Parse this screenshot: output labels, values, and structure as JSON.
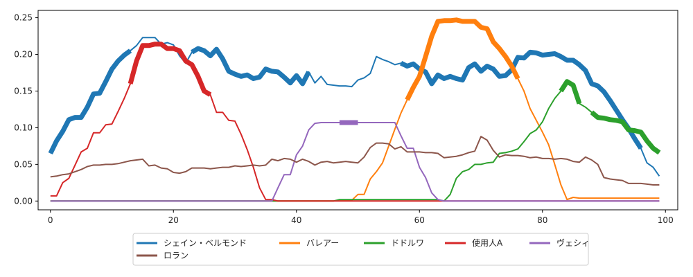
{
  "chart_data": {
    "type": "line",
    "title": "",
    "xlabel": "",
    "ylabel": "",
    "xlim": [
      -2,
      102
    ],
    "ylim": [
      -0.012,
      0.26
    ],
    "xticks": [
      0,
      20,
      40,
      60,
      80,
      100
    ],
    "yticks": [
      0.0,
      0.05,
      0.1,
      0.15,
      0.2,
      0.25
    ],
    "ytick_labels": [
      "0.00",
      "0.05",
      "0.10",
      "0.15",
      "0.20",
      "0.25"
    ],
    "grid": false,
    "legend_placement": "bottom-center",
    "series": [
      {
        "name": "シェイン・ベルモンド",
        "color": "#1f77b4",
        "values": [
          0.065,
          0.082,
          0.095,
          0.111,
          0.114,
          0.114,
          0.128,
          0.146,
          0.147,
          0.163,
          0.18,
          0.191,
          0.199,
          0.205,
          0.212,
          0.223,
          0.223,
          0.223,
          0.214,
          0.216,
          0.213,
          0.198,
          0.188,
          0.203,
          0.208,
          0.205,
          0.198,
          0.207,
          0.194,
          0.177,
          0.173,
          0.17,
          0.172,
          0.167,
          0.169,
          0.18,
          0.177,
          0.176,
          0.169,
          0.161,
          0.171,
          0.16,
          0.176,
          0.161,
          0.17,
          0.159,
          0.158,
          0.157,
          0.157,
          0.156,
          0.165,
          0.168,
          0.174,
          0.197,
          0.193,
          0.19,
          0.186,
          0.188,
          0.184,
          0.187,
          0.18,
          0.176,
          0.16,
          0.172,
          0.167,
          0.17,
          0.167,
          0.165,
          0.182,
          0.187,
          0.177,
          0.184,
          0.18,
          0.17,
          0.171,
          0.179,
          0.196,
          0.195,
          0.203,
          0.202,
          0.199,
          0.2,
          0.201,
          0.197,
          0.192,
          0.192,
          0.186,
          0.178,
          0.16,
          0.157,
          0.149,
          0.137,
          0.124,
          0.111,
          0.099,
          0.085,
          0.072,
          0.052,
          0.046,
          0.034
        ],
        "thick_segments": [
          [
            0,
            13
          ],
          [
            23,
            42
          ],
          [
            57,
            96
          ]
        ]
      },
      {
        "name": "バレアー",
        "color": "#ff7f0e",
        "values": [
          0,
          0,
          0,
          0,
          0,
          0,
          0,
          0,
          0,
          0,
          0,
          0,
          0,
          0,
          0,
          0,
          0,
          0,
          0,
          0,
          0,
          0,
          0,
          0,
          0,
          0,
          0,
          0,
          0,
          0,
          0,
          0,
          0,
          0,
          0,
          0,
          0,
          0,
          0,
          0,
          0,
          0,
          0,
          0,
          0,
          0,
          0,
          0.001,
          0.001,
          0.001,
          0.009,
          0.009,
          0.03,
          0.04,
          0.052,
          0.075,
          0.098,
          0.12,
          0.138,
          0.155,
          0.17,
          0.197,
          0.225,
          0.245,
          0.246,
          0.246,
          0.247,
          0.245,
          0.245,
          0.245,
          0.237,
          0.235,
          0.217,
          0.208,
          0.197,
          0.184,
          0.167,
          0.15,
          0.126,
          0.11,
          0.094,
          0.077,
          0.05,
          0.022,
          0.002,
          0.005,
          0.004,
          0.004,
          0.004,
          0.004,
          0.004,
          0.004,
          0.004,
          0.004,
          0.004,
          0.004,
          0.004,
          0.004,
          0.004,
          0.004
        ],
        "thick_segments": [
          [
            58,
            76
          ]
        ]
      },
      {
        "name": "ドドルワ",
        "color": "#2ca02c",
        "values": [
          0,
          0,
          0,
          0,
          0,
          0,
          0,
          0,
          0,
          0,
          0,
          0,
          0,
          0,
          0,
          0,
          0,
          0,
          0,
          0,
          0,
          0,
          0,
          0,
          0,
          0,
          0,
          0,
          0,
          0,
          0,
          0,
          0,
          0,
          0,
          0,
          0,
          0,
          0,
          0,
          0,
          0,
          0,
          0,
          0,
          0,
          0,
          0.002,
          0.002,
          0.002,
          0.002,
          0.002,
          0.002,
          0.002,
          0.002,
          0.002,
          0.002,
          0.002,
          0.002,
          0.002,
          0.002,
          0.002,
          0.002,
          0.002,
          0,
          0.009,
          0.031,
          0.04,
          0.043,
          0.05,
          0.05,
          0.052,
          0.053,
          0.065,
          0.066,
          0.068,
          0.071,
          0.081,
          0.092,
          0.097,
          0.108,
          0.126,
          0.14,
          0.15,
          0.163,
          0.158,
          0.133,
          0.128,
          0.121,
          0.114,
          0.113,
          0.111,
          0.11,
          0.108,
          0.097,
          0.096,
          0.094,
          0.082,
          0.072,
          0.066
        ],
        "thick_segments": [
          [
            83,
            86
          ],
          [
            88,
            99
          ]
        ]
      },
      {
        "name": "使用人A",
        "color": "#d62728",
        "values": [
          0.007,
          0.007,
          0.025,
          0.031,
          0.049,
          0.067,
          0.072,
          0.093,
          0.093,
          0.104,
          0.105,
          0.122,
          0.14,
          0.16,
          0.191,
          0.212,
          0.212,
          0.214,
          0.214,
          0.208,
          0.208,
          0.205,
          0.191,
          0.186,
          0.17,
          0.15,
          0.145,
          0.121,
          0.121,
          0.11,
          0.109,
          0.091,
          0.07,
          0.046,
          0.018,
          0.002,
          0.002,
          0,
          0,
          0,
          0,
          0,
          0,
          0,
          0,
          0,
          0,
          0,
          0,
          0,
          0,
          0,
          0,
          0,
          0,
          0,
          0,
          0,
          0,
          0,
          0,
          0,
          0,
          0,
          0,
          0,
          0,
          0,
          0,
          0,
          0,
          0,
          0,
          0,
          0,
          0,
          0,
          0,
          0,
          0,
          0,
          0,
          0,
          0,
          0,
          0,
          0,
          0,
          0,
          0,
          0,
          0,
          0,
          0,
          0,
          0,
          0,
          0,
          0,
          0
        ],
        "thick_segments": [
          [
            13,
            26
          ]
        ]
      },
      {
        "name": "ヴェシィ",
        "color": "#9467bd",
        "values": [
          0,
          0,
          0,
          0,
          0,
          0,
          0,
          0,
          0,
          0,
          0,
          0,
          0,
          0,
          0,
          0,
          0,
          0,
          0,
          0,
          0,
          0,
          0,
          0,
          0,
          0,
          0,
          0,
          0,
          0,
          0,
          0,
          0,
          0,
          0,
          0,
          0,
          0.018,
          0.036,
          0.036,
          0.063,
          0.075,
          0.097,
          0.106,
          0.107,
          0.107,
          0.107,
          0.107,
          0.107,
          0.107,
          0.107,
          0.107,
          0.107,
          0.107,
          0.107,
          0.107,
          0.107,
          0.089,
          0.072,
          0.072,
          0.046,
          0.032,
          0.011,
          0.002,
          0,
          0,
          0,
          0,
          0,
          0,
          0,
          0,
          0,
          0,
          0,
          0,
          0,
          0,
          0,
          0,
          0,
          0,
          0,
          0,
          0,
          0,
          0,
          0,
          0,
          0,
          0,
          0,
          0,
          0,
          0,
          0,
          0,
          0,
          0,
          0
        ],
        "thick_segments": [
          [
            47,
            50
          ]
        ]
      },
      {
        "name": "ロラン",
        "color": "#8c564b",
        "values": [
          0.033,
          0.034,
          0.036,
          0.037,
          0.04,
          0.043,
          0.047,
          0.049,
          0.049,
          0.05,
          0.05,
          0.051,
          0.053,
          0.055,
          0.056,
          0.057,
          0.048,
          0.049,
          0.045,
          0.044,
          0.039,
          0.038,
          0.04,
          0.045,
          0.045,
          0.045,
          0.044,
          0.045,
          0.046,
          0.046,
          0.048,
          0.047,
          0.048,
          0.049,
          0.048,
          0.049,
          0.057,
          0.055,
          0.058,
          0.057,
          0.053,
          0.057,
          0.054,
          0.049,
          0.053,
          0.054,
          0.052,
          0.053,
          0.054,
          0.053,
          0.052,
          0.06,
          0.073,
          0.079,
          0.079,
          0.078,
          0.071,
          0.074,
          0.067,
          0.067,
          0.067,
          0.066,
          0.066,
          0.065,
          0.059,
          0.06,
          0.061,
          0.063,
          0.066,
          0.068,
          0.088,
          0.083,
          0.069,
          0.06,
          0.063,
          0.062,
          0.062,
          0.061,
          0.059,
          0.06,
          0.058,
          0.058,
          0.057,
          0.058,
          0.057,
          0.054,
          0.053,
          0.06,
          0.056,
          0.05,
          0.032,
          0.03,
          0.029,
          0.028,
          0.024,
          0.024,
          0.024,
          0.023,
          0.022,
          0.022
        ],
        "thick_segments": []
      }
    ]
  }
}
